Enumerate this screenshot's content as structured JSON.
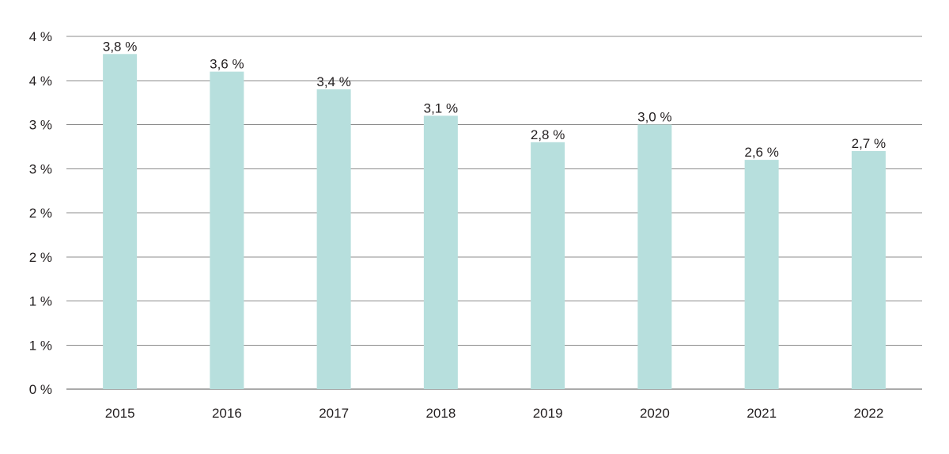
{
  "chart_data": {
    "type": "bar",
    "categories": [
      "2015",
      "2016",
      "2017",
      "2018",
      "2019",
      "2020",
      "2021",
      "2022"
    ],
    "series": [
      {
        "values": [
          3.8,
          3.6,
          3.4,
          3.1,
          2.8,
          3.0,
          2.6,
          2.7
        ],
        "labels": [
          "3,8 %",
          "3,6 %",
          "3,4 %",
          "3,1 %",
          "2,8 %",
          "3,0 %",
          "2,6 %",
          "2,7 %"
        ]
      }
    ],
    "y_ticks": [
      {
        "value": 0,
        "label": "0 %"
      },
      {
        "value": 0.5,
        "label": "1 %"
      },
      {
        "value": 1.0,
        "label": "1 %"
      },
      {
        "value": 1.5,
        "label": "2 %"
      },
      {
        "value": 2.0,
        "label": "2 %"
      },
      {
        "value": 2.5,
        "label": "3 %"
      },
      {
        "value": 3.0,
        "label": "3 %"
      },
      {
        "value": 3.5,
        "label": "4 %"
      },
      {
        "value": 4.0,
        "label": "4 %"
      }
    ],
    "ylim": [
      0,
      4
    ],
    "grid": true,
    "legend": "none",
    "title": "",
    "xlabel": "",
    "ylabel": "",
    "colors": {
      "bar": "#b7dfdd",
      "grid": "#8c8c8c",
      "text": "#231f20"
    }
  }
}
